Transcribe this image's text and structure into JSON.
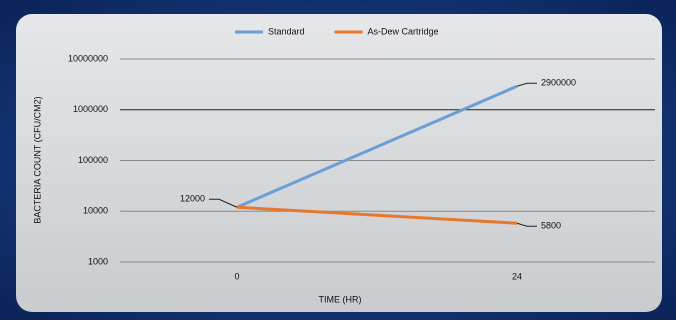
{
  "chart_data": {
    "type": "line",
    "categories": [
      "0",
      "24"
    ],
    "series": [
      {
        "name": "Standard",
        "color": "#6a9fd6",
        "values": [
          12000,
          2900000
        ]
      },
      {
        "name": "As-Dew Cartridge",
        "color": "#e8772e",
        "values": [
          12000,
          5800
        ]
      }
    ],
    "y_label": "BACTERIA COUNT (CFU/CM2)",
    "x_label": "TIME (HR)",
    "ylim": [
      1000,
      10000000
    ],
    "yticks": [
      1000,
      10000,
      100000,
      1000000,
      10000000
    ],
    "log_scale": true,
    "grid": true,
    "legend": "top"
  }
}
